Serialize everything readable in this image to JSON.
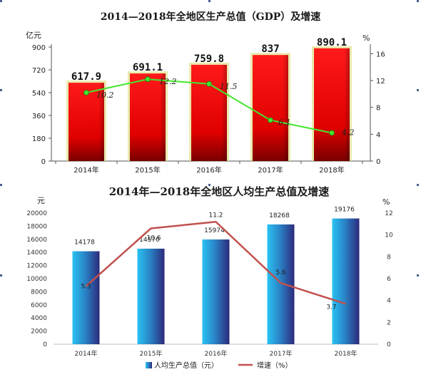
{
  "chart_data": [
    {
      "type": "bar",
      "title": "2014—2018年全地区生产总值（GDP）及增速",
      "categories": [
        "2014年",
        "2015年",
        "2016年",
        "2017年",
        "2018年"
      ],
      "left_unit": "亿元",
      "right_unit": "%",
      "left_ticks": [
        "0",
        "180",
        "360",
        "540",
        "720",
        "900"
      ],
      "right_ticks": [
        "0",
        "4",
        "8",
        "12",
        "16"
      ],
      "ylim_left": [
        0,
        900
      ],
      "ylim_right": [
        0,
        17
      ],
      "series": [
        {
          "kind": "bar",
          "axis": "left",
          "values": [
            617.9,
            691.1,
            759.8,
            837,
            890.1
          ],
          "labels": [
            "617.9",
            "691.1",
            "759.8",
            "837",
            "890.1"
          ]
        },
        {
          "kind": "line",
          "axis": "right",
          "values": [
            10.2,
            12.2,
            11.5,
            6.1,
            4.2
          ],
          "labels": [
            "10.2",
            "12.2",
            "11.5",
            "6.1",
            "4.2"
          ]
        }
      ],
      "colors": {
        "bar": "#e00000",
        "bar_dark": "#8a0000",
        "glow": "#d8d86a",
        "line": "#44e62e"
      }
    },
    {
      "type": "bar",
      "title": "2014年—2018年全地区人均生产总值及增速",
      "categories": [
        "2014年",
        "2015年",
        "2016年",
        "2017年",
        "2018年"
      ],
      "left_unit": "元",
      "right_unit": "%",
      "left_ticks": [
        "0",
        "2000",
        "4000",
        "6000",
        "8000",
        "10000",
        "12000",
        "14000",
        "16000",
        "18000",
        "20000"
      ],
      "right_ticks": [
        "0",
        "2",
        "4",
        "6",
        "8",
        "10",
        "12"
      ],
      "ylim_left": [
        0,
        20000
      ],
      "ylim_right": [
        0,
        12
      ],
      "series": [
        {
          "kind": "bar",
          "axis": "left",
          "name": "人均生产总值（元）",
          "values": [
            14178,
            14570,
            15974,
            18268,
            19176
          ],
          "labels": [
            "14178",
            "14570",
            "15974",
            "18268",
            "19176"
          ]
        },
        {
          "kind": "line",
          "axis": "right",
          "name": "增速（%）",
          "values": [
            5.3,
            10.6,
            11.2,
            5.6,
            3.7
          ],
          "labels": [
            "5.3",
            "10.6",
            "11.2",
            "5.6",
            "3.7"
          ]
        }
      ],
      "legend": "bottom",
      "colors": {
        "bar_light": "#27b6ee",
        "bar_dark": "#2c2a80",
        "line": "#c0504d"
      }
    }
  ]
}
